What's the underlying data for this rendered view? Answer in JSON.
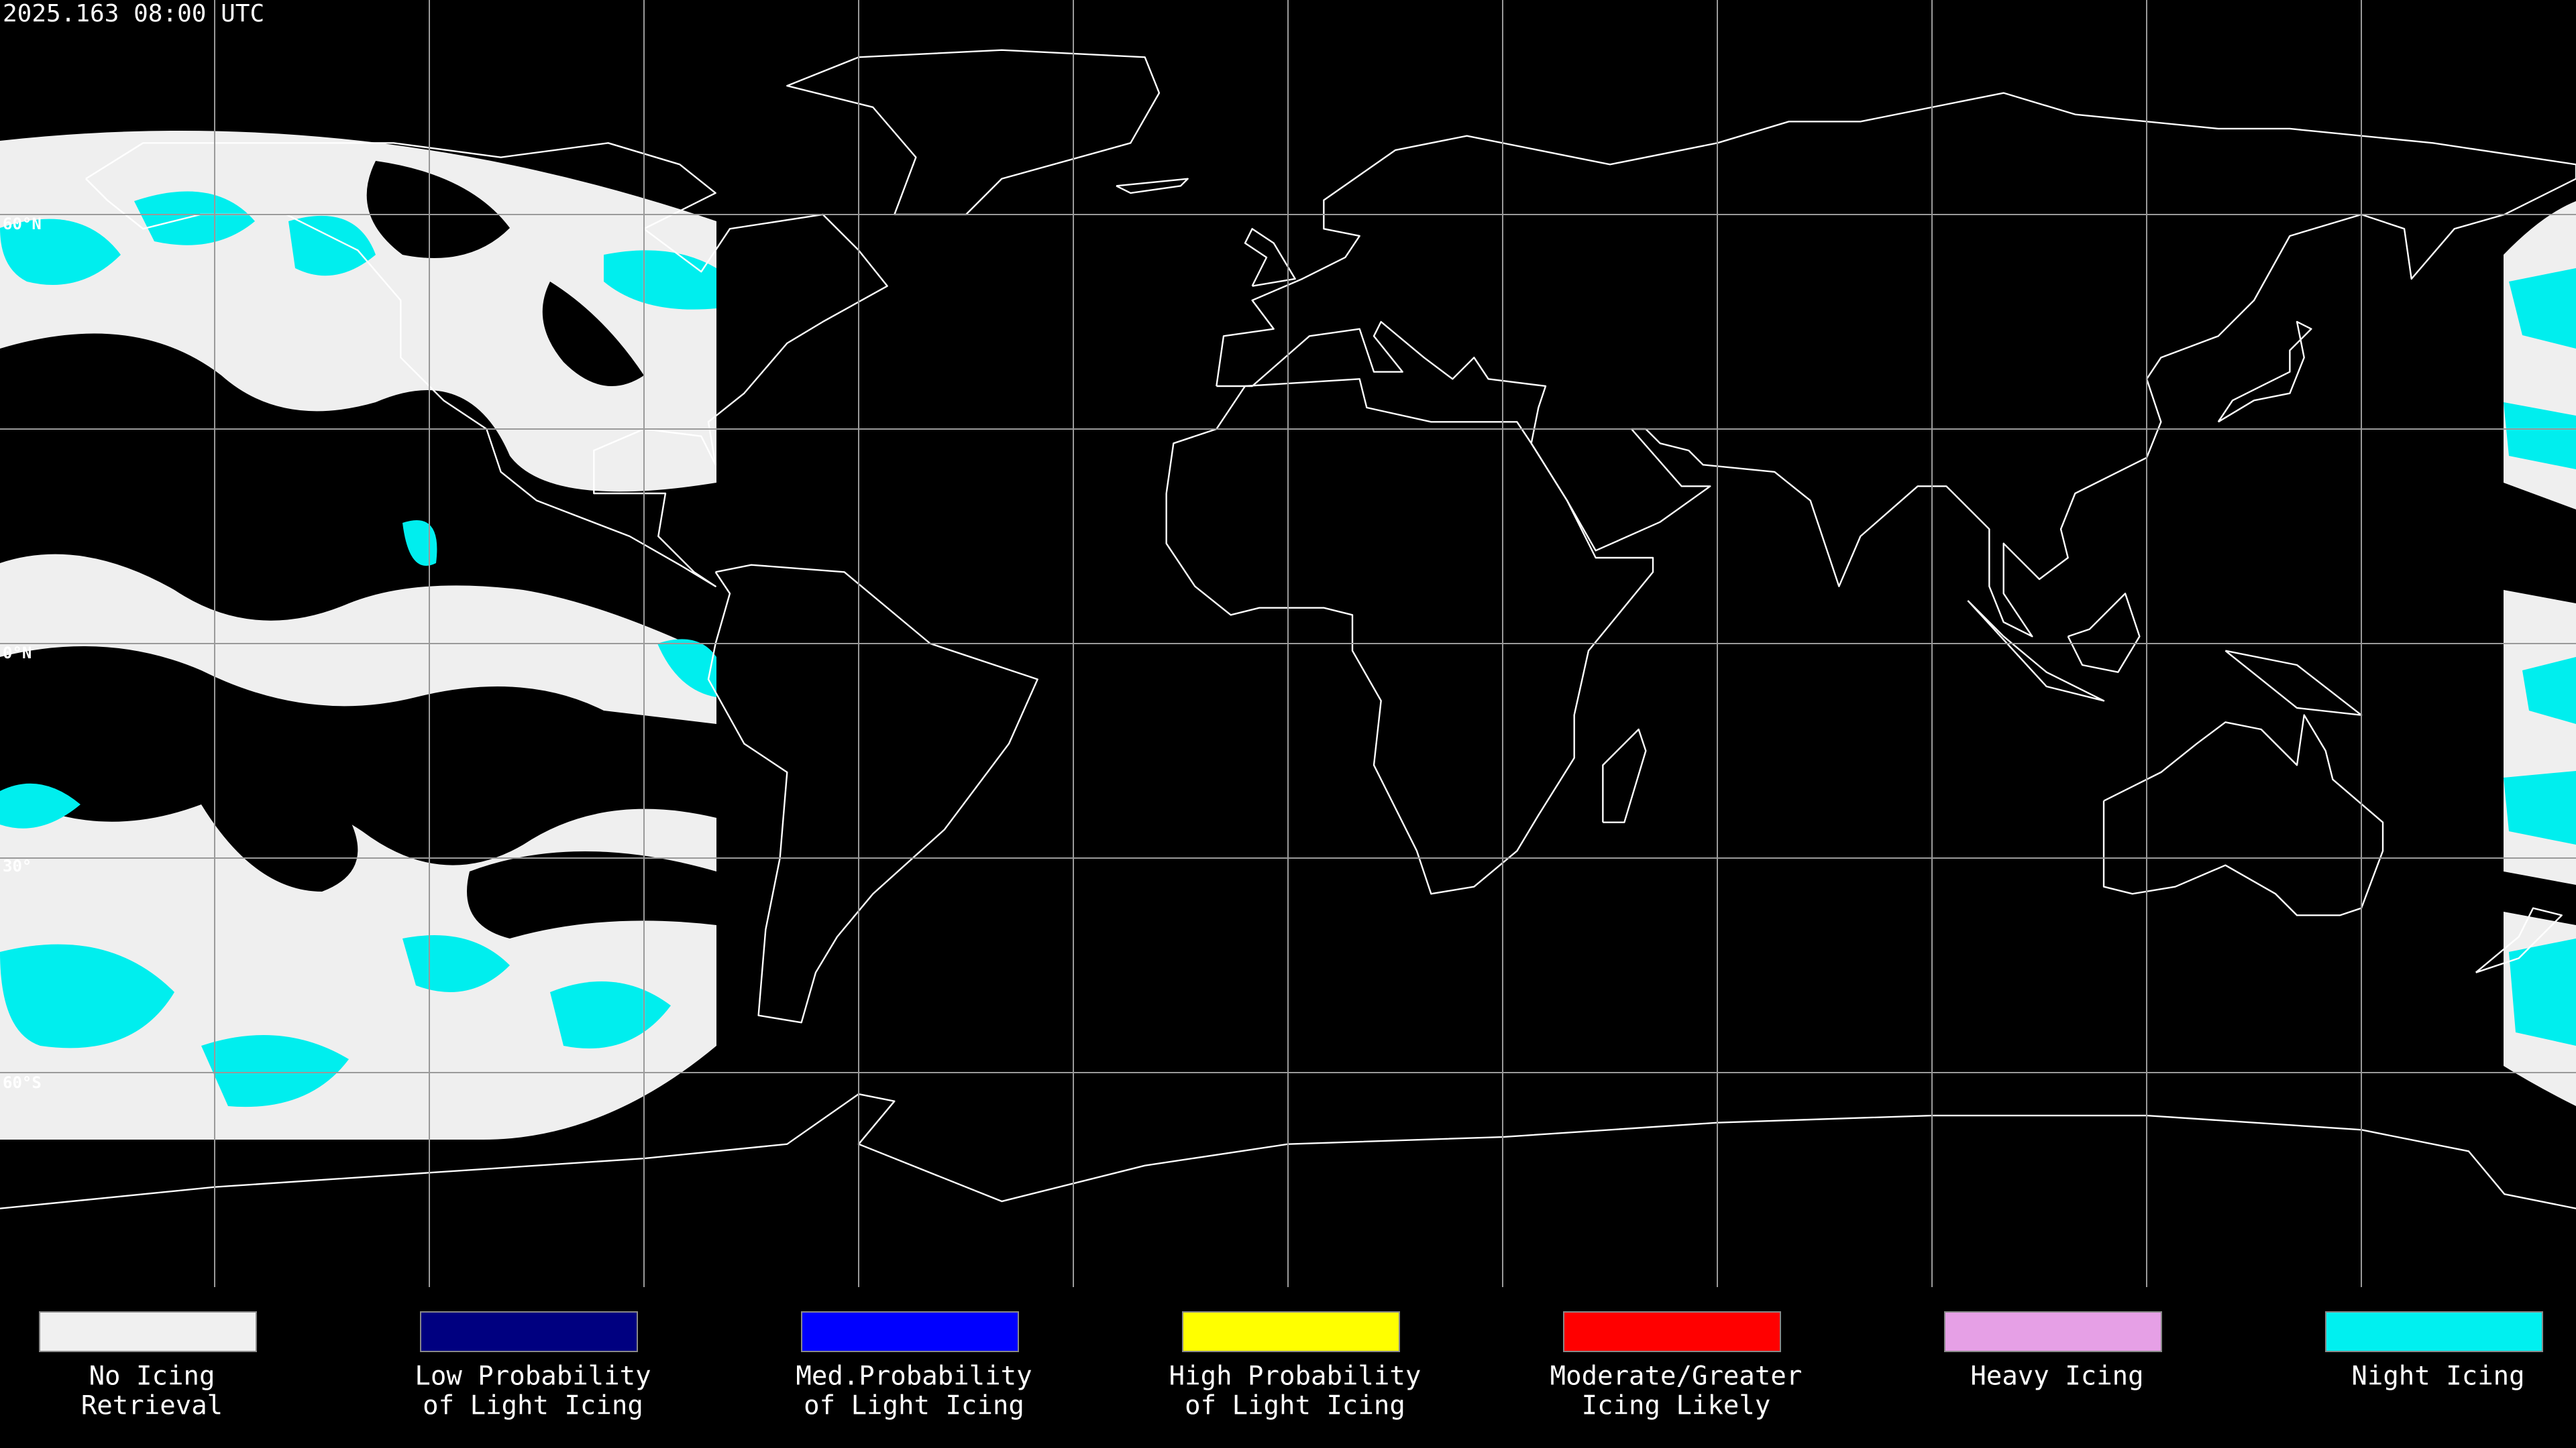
{
  "header": {
    "timestamp": "2025.163 08:00 UTC"
  },
  "latitude_labels": [
    "60°N",
    "0°N",
    "30°",
    "60°S"
  ],
  "legend": [
    {
      "color": "#f0f0f0",
      "lines": [
        "No Icing",
        "Retrieval"
      ]
    },
    {
      "color": "#000080",
      "lines": [
        "Low Probability",
        "of Light Icing"
      ]
    },
    {
      "color": "#0000ff",
      "lines": [
        "Med.Probability",
        "of Light Icing"
      ]
    },
    {
      "color": "#ffff00",
      "lines": [
        "High Probability",
        "of Light Icing"
      ]
    },
    {
      "color": "#ff0000",
      "lines": [
        "Moderate/Greater",
        "Icing Likely"
      ]
    },
    {
      "color": "#e6a0e6",
      "lines": [
        "Heavy Icing"
      ]
    },
    {
      "color": "#00f0f0",
      "lines": [
        "Night Icing"
      ]
    }
  ]
}
